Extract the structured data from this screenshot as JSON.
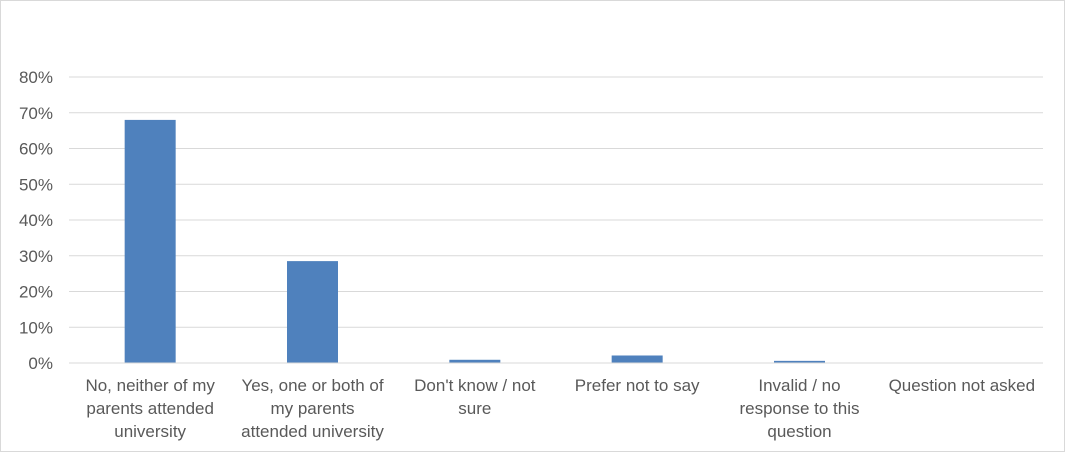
{
  "chart_data": {
    "type": "bar",
    "categories": [
      "No, neither of my parents attended university",
      "Yes, one or both of my parents attended university",
      "Don't know / not sure",
      "Prefer not to say",
      "Invalid / no response to this question",
      "Question not asked"
    ],
    "category_lines": [
      [
        "No, neither of my",
        "parents attended",
        "university"
      ],
      [
        "Yes, one or both of",
        "my parents",
        "attended university"
      ],
      [
        "Don't know / not",
        "sure"
      ],
      [
        "Prefer not to say"
      ],
      [
        "Invalid / no",
        "response to this",
        "question"
      ],
      [
        "Question not asked"
      ]
    ],
    "values": [
      0.68,
      0.285,
      0.009,
      0.021,
      0.006,
      0.0
    ],
    "ylim": [
      0,
      0.8
    ],
    "yticks": [
      0,
      0.1,
      0.2,
      0.3,
      0.4,
      0.5,
      0.6,
      0.7,
      0.8
    ],
    "ytick_labels": [
      "0%",
      "10%",
      "20%",
      "30%",
      "40%",
      "50%",
      "60%",
      "70%",
      "80%"
    ],
    "grid": true,
    "bar_color": "#4f81bd",
    "grid_color": "#d9d9d9",
    "title": "",
    "xlabel": "",
    "ylabel": ""
  }
}
